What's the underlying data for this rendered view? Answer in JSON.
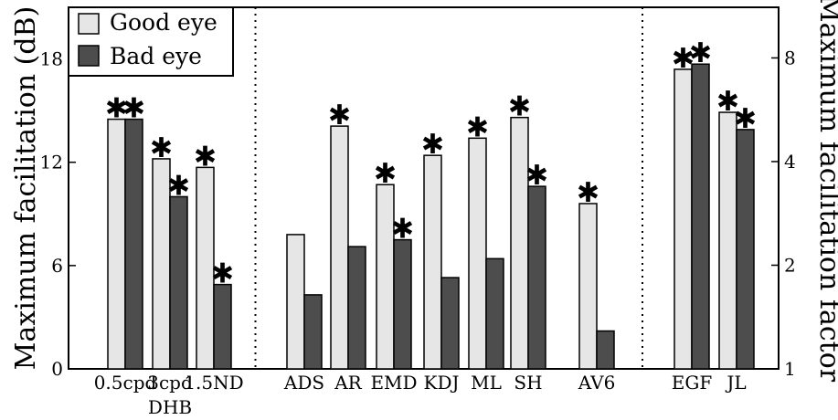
{
  "chart_data": {
    "type": "bar",
    "ylabel": "Maximum facilitation (dB)",
    "ylabel_right": "Maximum facilitation factor",
    "ylim": [
      0,
      21
    ],
    "y_ticks": [
      0,
      6,
      12,
      18
    ],
    "y_ticks_right": [
      {
        "label": "1",
        "db": 0
      },
      {
        "label": "2",
        "db": 6.02
      },
      {
        "label": "4",
        "db": 12.04
      },
      {
        "label": "8",
        "db": 18.06
      }
    ],
    "legend": {
      "position": "top-left",
      "entries": [
        "Good eye",
        "Bad eye"
      ]
    },
    "series_colors": {
      "good": "#e6e6e6",
      "bad": "#4d4d4d"
    },
    "group_separators_after": [
      2,
      9
    ],
    "categories": [
      {
        "label": "0.5cpd",
        "sublabel": "",
        "good": 14.5,
        "bad": 14.5,
        "good_star": true,
        "bad_star": true
      },
      {
        "label": "3cpd",
        "sublabel": "DHB",
        "good": 12.2,
        "bad": 10.0,
        "good_star": true,
        "bad_star": true
      },
      {
        "label": "1.5ND",
        "sublabel": "",
        "good": 11.7,
        "bad": 4.9,
        "good_star": true,
        "bad_star": true
      },
      {
        "label": "ADS",
        "sublabel": "",
        "good": 7.8,
        "bad": 4.3,
        "good_star": false,
        "bad_star": false
      },
      {
        "label": "AR",
        "sublabel": "",
        "good": 14.1,
        "bad": 7.1,
        "good_star": true,
        "bad_star": false
      },
      {
        "label": "EMD",
        "sublabel": "",
        "good": 10.7,
        "bad": 7.5,
        "good_star": true,
        "bad_star": true
      },
      {
        "label": "KDJ",
        "sublabel": "",
        "good": 12.4,
        "bad": 5.3,
        "good_star": true,
        "bad_star": false
      },
      {
        "label": "ML",
        "sublabel": "",
        "good": 13.4,
        "bad": 6.4,
        "good_star": true,
        "bad_star": false
      },
      {
        "label": "SH",
        "sublabel": "",
        "good": 14.6,
        "bad": 10.6,
        "good_star": true,
        "bad_star": true
      },
      {
        "label": "AV6",
        "sublabel": "",
        "good": 9.6,
        "bad": 2.2,
        "good_star": true,
        "bad_star": false
      },
      {
        "label": "EGF",
        "sublabel": "",
        "good": 17.4,
        "bad": 17.7,
        "good_star": true,
        "bad_star": true
      },
      {
        "label": "JL",
        "sublabel": "",
        "good": 14.9,
        "bad": 13.9,
        "good_star": true,
        "bad_star": true
      }
    ],
    "star_symbol": "✱"
  }
}
